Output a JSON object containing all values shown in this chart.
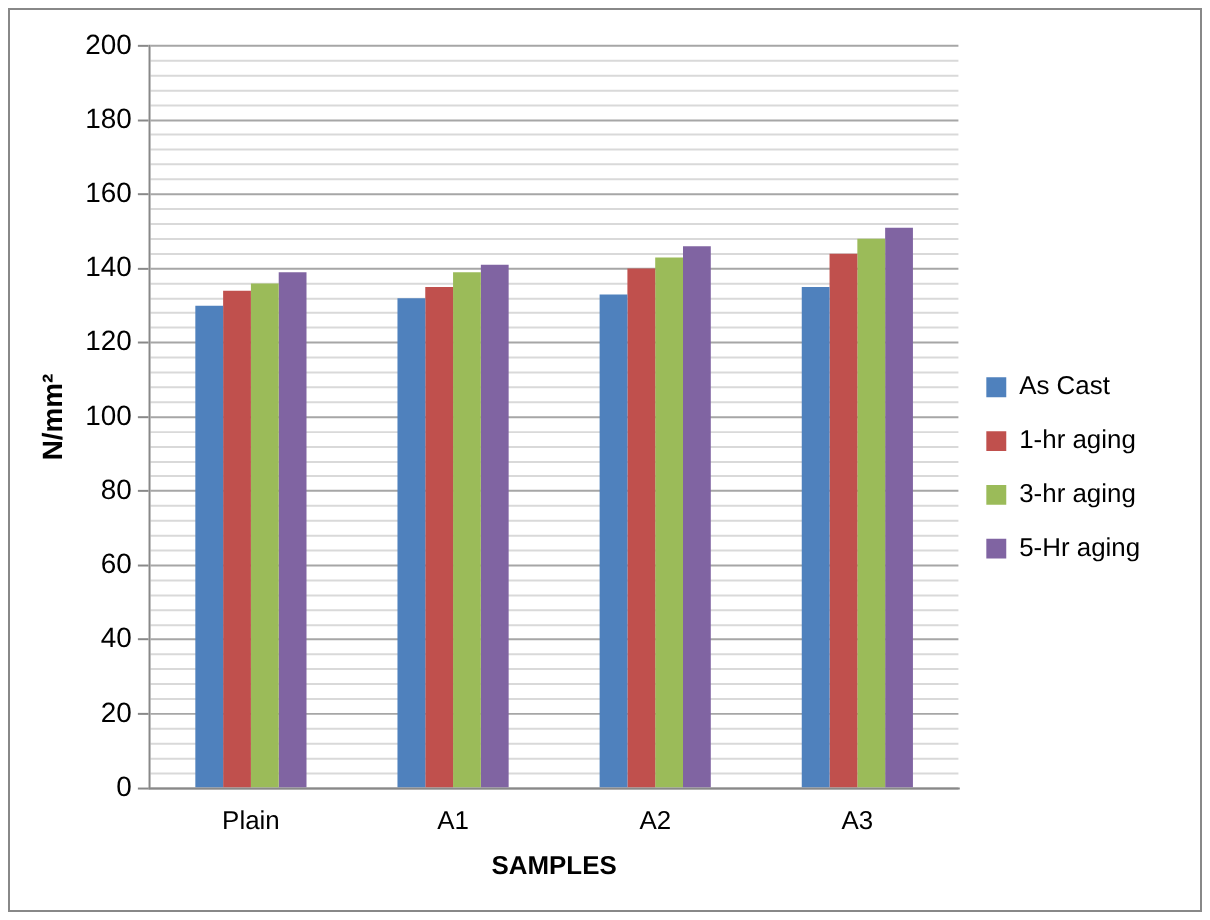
{
  "chart_data": {
    "type": "bar",
    "xlabel": "SAMPLES",
    "ylabel": "N/mm²",
    "categories": [
      "Plain",
      "A1",
      "A2",
      "A3"
    ],
    "series": [
      {
        "name": "As Cast",
        "color": "#4f81bd",
        "values": [
          130,
          132,
          133,
          135
        ]
      },
      {
        "name": "1-hr aging",
        "color": "#c0504d",
        "values": [
          134,
          135,
          140,
          144
        ]
      },
      {
        "name": "3-hr aging",
        "color": "#9bbb59",
        "values": [
          136,
          139,
          143,
          148
        ]
      },
      {
        "name": "5-Hr aging",
        "color": "#8064a2",
        "values": [
          139,
          141,
          146,
          151
        ]
      }
    ],
    "ylim": [
      0,
      200
    ],
    "yticks": [
      0,
      {
        "value": 4,
        "label": null
      },
      {
        "value": 8,
        "label": null
      },
      {
        "value": 12,
        "label": null
      },
      {
        "value": 16,
        "label": null
      },
      20,
      {
        "value": 24,
        "label": null
      },
      {
        "value": 28,
        "label": null
      },
      {
        "value": 32,
        "label": null
      },
      {
        "value": 36,
        "label": null
      },
      40,
      {
        "value": 44,
        "label": null
      },
      {
        "value": 48,
        "label": null
      },
      {
        "value": 52,
        "label": null
      },
      {
        "value": 56,
        "label": null
      },
      60,
      {
        "value": 64,
        "label": null
      },
      {
        "value": 68,
        "label": null
      },
      {
        "value": 72,
        "label": null
      },
      {
        "value": 76,
        "label": null
      },
      80,
      {
        "value": 84,
        "label": null
      },
      {
        "value": 88,
        "label": null
      },
      {
        "value": 92,
        "label": null
      },
      {
        "value": 96,
        "label": null
      },
      100,
      {
        "value": 104,
        "label": null
      },
      {
        "value": 108,
        "label": null
      },
      {
        "value": 112,
        "label": null
      },
      {
        "value": 116,
        "label": null
      },
      120,
      {
        "value": 124,
        "label": null
      },
      {
        "value": 128,
        "label": null
      },
      {
        "value": 132,
        "label": null
      },
      {
        "value": 136,
        "label": null
      },
      140,
      {
        "value": 144,
        "label": null
      },
      {
        "value": 148,
        "label": null
      },
      {
        "value": 152,
        "label": null
      },
      {
        "value": 156,
        "label": null
      },
      160,
      {
        "value": 164,
        "label": null
      },
      {
        "value": 168,
        "label": null
      },
      {
        "value": 172,
        "label": null
      },
      {
        "value": 176,
        "label": null
      },
      180,
      {
        "value": 184,
        "label": null
      },
      {
        "value": 188,
        "label": null
      },
      {
        "value": 192,
        "label": null
      },
      {
        "value": 196,
        "label": null
      },
      200
    ],
    "grid": "y",
    "legend": "right"
  }
}
